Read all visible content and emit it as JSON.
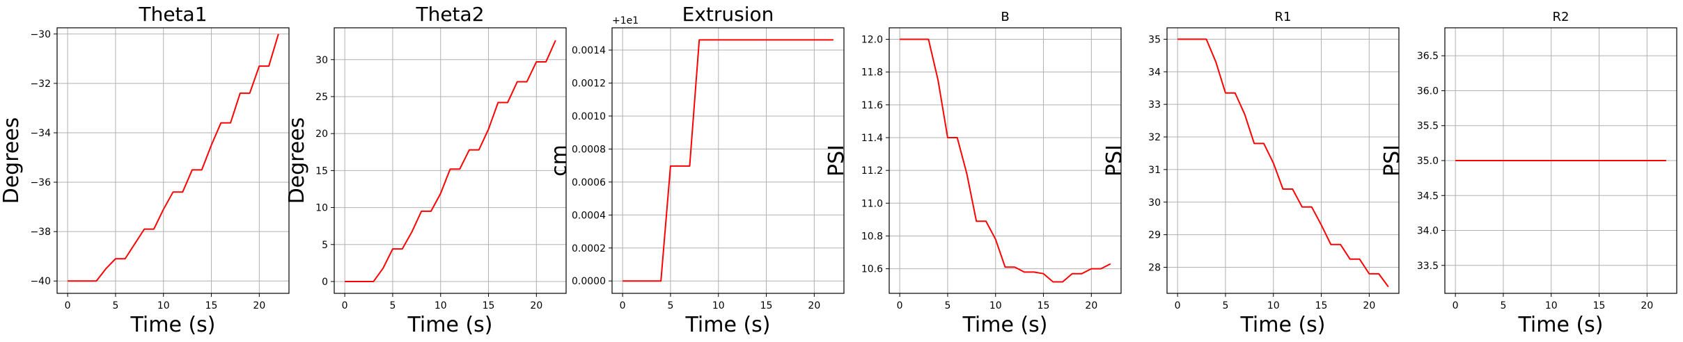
{
  "figure": {
    "background": "#ffffff",
    "line_color": "#ff0000",
    "grid_color": "#b0b0b0"
  },
  "chart_data": [
    {
      "type": "line",
      "title": "Theta1",
      "xlabel": "Time (s)",
      "ylabel": "Degrees",
      "xlim": [
        -1.1,
        23.1
      ],
      "ylim": [
        -40.5,
        -29.75
      ],
      "xticks": [
        0,
        5,
        10,
        15,
        20
      ],
      "yticks": [
        -40,
        -38,
        -36,
        -34,
        -32,
        -30
      ],
      "ytick_labels": [
        "−40",
        "−38",
        "−36",
        "−34",
        "−32",
        "−30"
      ],
      "offset_text": "",
      "grid": true,
      "series": [
        {
          "color": "#ff0000",
          "x": [
            0,
            1,
            2,
            3,
            4,
            5,
            6,
            7,
            8,
            9,
            10,
            11,
            12,
            13,
            14,
            15,
            16,
            17,
            18,
            19,
            20,
            21,
            22
          ],
          "y": [
            -40.0,
            -40.0,
            -40.0,
            -40.0,
            -39.5,
            -39.1,
            -39.1,
            -38.5,
            -37.9,
            -37.9,
            -37.1,
            -36.4,
            -36.4,
            -35.5,
            -35.5,
            -34.5,
            -33.6,
            -33.6,
            -32.4,
            -32.4,
            -31.3,
            -31.3,
            -30.0
          ]
        }
      ]
    },
    {
      "type": "line",
      "title": "Theta2",
      "xlabel": "Time (s)",
      "ylabel": "Degrees",
      "xlim": [
        -1.1,
        23.1
      ],
      "ylim": [
        -1.6,
        34.3
      ],
      "xticks": [
        0,
        5,
        10,
        15,
        20
      ],
      "yticks": [
        0,
        5,
        10,
        15,
        20,
        25,
        30
      ],
      "ytick_labels": [
        "0",
        "5",
        "10",
        "15",
        "20",
        "25",
        "30"
      ],
      "offset_text": "",
      "grid": true,
      "series": [
        {
          "color": "#ff0000",
          "x": [
            0,
            1,
            2,
            3,
            4,
            5,
            6,
            7,
            8,
            9,
            10,
            11,
            12,
            13,
            14,
            15,
            16,
            17,
            18,
            19,
            20,
            21,
            22
          ],
          "y": [
            0,
            0,
            0,
            0,
            1.8,
            4.4,
            4.4,
            6.7,
            9.5,
            9.5,
            11.9,
            15.2,
            15.2,
            17.8,
            17.8,
            20.6,
            24.2,
            24.2,
            27.0,
            27.0,
            29.7,
            29.7,
            32.6
          ]
        }
      ]
    },
    {
      "type": "line",
      "title": "Extrusion",
      "xlabel": "Time (s)",
      "ylabel": "cm",
      "xlim": [
        -1.1,
        23.1
      ],
      "ylim": [
        -7.5e-05,
        0.001535
      ],
      "xticks": [
        0,
        5,
        10,
        15,
        20
      ],
      "yticks": [
        0,
        0.0002,
        0.0004,
        0.0006,
        0.0008,
        0.001,
        0.0012,
        0.0014
      ],
      "ytick_labels": [
        "0.0000",
        "0.0002",
        "0.0004",
        "0.0006",
        "0.0008",
        "0.0010",
        "0.0012",
        "0.0014"
      ],
      "offset_text": "+1e1",
      "grid": true,
      "series": [
        {
          "color": "#ff0000",
          "x": [
            0,
            4,
            5,
            7,
            8,
            22
          ],
          "y": [
            0,
            0,
            0.000697,
            0.000697,
            0.001462,
            0.001462
          ]
        }
      ]
    },
    {
      "type": "line",
      "title": "B",
      "xlabel": "Time (s)",
      "ylabel": "PSI",
      "xlim": [
        -1.1,
        23.1
      ],
      "ylim": [
        10.45,
        12.07
      ],
      "xticks": [
        0,
        5,
        10,
        15,
        20
      ],
      "yticks": [
        10.6,
        10.8,
        11.0,
        11.2,
        11.4,
        11.6,
        11.8,
        12.0
      ],
      "ytick_labels": [
        "10.6",
        "10.8",
        "11.0",
        "11.2",
        "11.4",
        "11.6",
        "11.8",
        "12.0"
      ],
      "offset_text": "",
      "grid": true,
      "series": [
        {
          "color": "#ff0000",
          "x": [
            0,
            1,
            2,
            3,
            4,
            5,
            6,
            7,
            8,
            9,
            10,
            11,
            12,
            13,
            14,
            15,
            16,
            17,
            18,
            19,
            20,
            21,
            22
          ],
          "y": [
            12.0,
            12.0,
            12.0,
            12.0,
            11.75,
            11.4,
            11.4,
            11.18,
            10.89,
            10.89,
            10.78,
            10.61,
            10.61,
            10.58,
            10.58,
            10.57,
            10.52,
            10.52,
            10.57,
            10.57,
            10.6,
            10.6,
            10.63
          ]
        }
      ]
    },
    {
      "type": "line",
      "title": "R1",
      "xlabel": "Time (s)",
      "ylabel": "PSI",
      "xlim": [
        -1.1,
        23.1
      ],
      "ylim": [
        27.2,
        35.35
      ],
      "xticks": [
        0,
        5,
        10,
        15,
        20
      ],
      "yticks": [
        28,
        29,
        30,
        31,
        32,
        33,
        34,
        35
      ],
      "ytick_labels": [
        "28",
        "29",
        "30",
        "31",
        "32",
        "33",
        "34",
        "35"
      ],
      "offset_text": "",
      "grid": true,
      "series": [
        {
          "color": "#ff0000",
          "x": [
            0,
            1,
            2,
            3,
            4,
            5,
            6,
            7,
            8,
            9,
            10,
            11,
            12,
            13,
            14,
            15,
            16,
            17,
            18,
            19,
            20,
            21,
            22
          ],
          "y": [
            35.0,
            35.0,
            35.0,
            35.0,
            34.3,
            33.35,
            33.35,
            32.7,
            31.8,
            31.8,
            31.2,
            30.4,
            30.4,
            29.85,
            29.85,
            29.3,
            28.7,
            28.7,
            28.25,
            28.25,
            27.8,
            27.8,
            27.4
          ]
        }
      ]
    },
    {
      "type": "line",
      "title": "R2",
      "xlabel": "Time (s)",
      "ylabel": "PSI",
      "xlim": [
        -1.1,
        23.1
      ],
      "ylim": [
        33.1,
        36.9
      ],
      "xticks": [
        0,
        5,
        10,
        15,
        20
      ],
      "yticks": [
        33.5,
        34.0,
        34.5,
        35.0,
        35.5,
        36.0,
        36.5
      ],
      "ytick_labels": [
        "33.5",
        "34.0",
        "34.5",
        "35.0",
        "35.5",
        "36.0",
        "36.5"
      ],
      "offset_text": "",
      "grid": true,
      "series": [
        {
          "color": "#ff0000",
          "x": [
            0,
            22
          ],
          "y": [
            35.0,
            35.0
          ]
        }
      ]
    }
  ]
}
